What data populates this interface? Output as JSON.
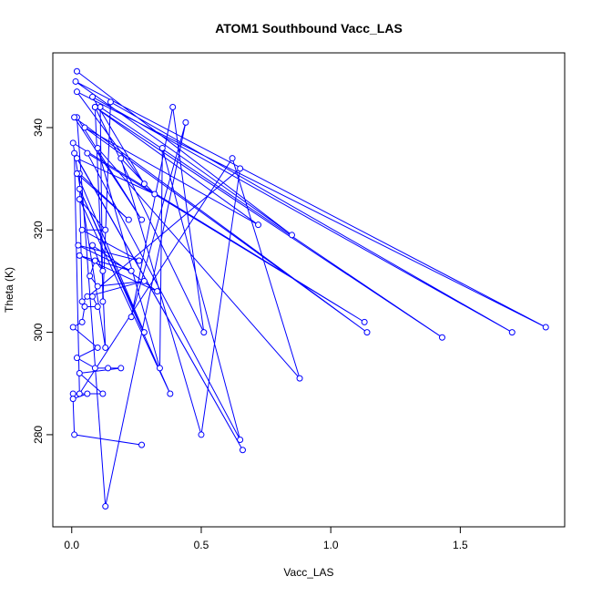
{
  "chart_data": {
    "type": "line",
    "title": "ATOM1 Southbound Vacc_LAS",
    "x_label": "Vacc_LAS",
    "y_label": "Theta (K)",
    "color": "#0000ff",
    "markers": true,
    "x": [
      0.02,
      0.85,
      0.015,
      1.83,
      0.02,
      0.28,
      0.08,
      1.7,
      0.15,
      0.12,
      0.11,
      1.43,
      0.09,
      0.51,
      0.39,
      0.23,
      0.44,
      0.13,
      0.02,
      0.27,
      0.01,
      1.14,
      0.05,
      0.72,
      0.09,
      0.13,
      0.005,
      1.13,
      0.06,
      0.65,
      0.35,
      0.34,
      0.1,
      0.88,
      0.62,
      0.03,
      0.01,
      0.66,
      0.02,
      0.32,
      0.19,
      0.5,
      0.65,
      0.04,
      0.03,
      0.22,
      0.02,
      0.28,
      0.03,
      0.38,
      0.03,
      0.13,
      0.04,
      0.26,
      0.025,
      0.23,
      0.03,
      0.33,
      0.08,
      0.12,
      0.09,
      0.07,
      0.1,
      0.28,
      0.06,
      0.08,
      0.1,
      0.05,
      0.04,
      0.005,
      0.1,
      0.02,
      0.09,
      0.14,
      0.19,
      0.03,
      0.12,
      0.005,
      0.06,
      0.005,
      0.01,
      0.27
    ],
    "values": [
      351,
      319,
      349,
      301,
      347,
      329,
      346,
      300,
      345,
      306,
      344,
      299,
      344,
      300,
      344,
      303,
      341,
      266,
      342,
      322,
      342,
      300,
      340,
      321,
      344,
      297,
      337,
      302,
      335,
      279,
      336,
      293,
      336,
      291,
      334,
      288,
      335,
      277,
      334,
      327,
      334,
      280,
      332,
      306,
      331,
      322,
      331,
      300,
      328,
      288,
      326,
      320,
      320,
      314,
      317,
      312,
      315,
      308,
      317,
      312,
      314,
      311,
      309,
      310,
      307,
      307,
      305,
      305,
      302,
      301,
      297,
      295,
      293,
      293,
      293,
      292,
      288,
      288,
      288,
      287,
      280,
      278
    ],
    "xlim": [
      -0.073,
      1.903
    ],
    "ylim": [
      262.0,
      354.6
    ],
    "xticks": [
      {
        "value": 0,
        "label": "0.0"
      },
      {
        "value": 0.5,
        "label": "0.5"
      },
      {
        "value": 1,
        "label": "1.0"
      },
      {
        "value": 1.5,
        "label": "1.5"
      }
    ],
    "yticks": [
      280,
      300,
      320,
      340
    ]
  }
}
